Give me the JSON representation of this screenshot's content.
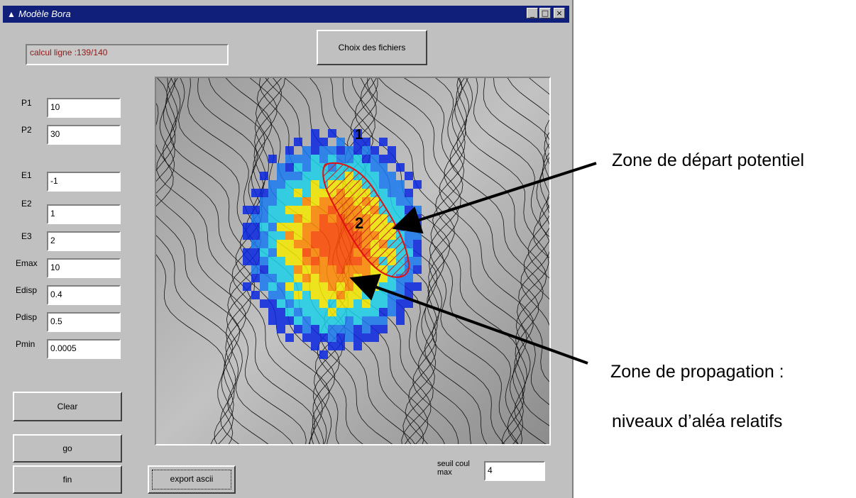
{
  "window": {
    "title": "Modèle Bora",
    "controls": [
      "_",
      "□",
      "×"
    ]
  },
  "status": {
    "text": "calcul ligne :139/140"
  },
  "choose_files_button": "Choix des fichiers",
  "params": [
    {
      "label": "P1",
      "value": "10"
    },
    {
      "label": "P2",
      "value": "30"
    },
    {
      "label": "E1",
      "value": "-1"
    },
    {
      "label": "E2",
      "value": "1"
    },
    {
      "label": "E3",
      "value": "2"
    },
    {
      "label": "Emax",
      "value": "10"
    },
    {
      "label": "Edisp",
      "value": "0.4"
    },
    {
      "label": "Pdisp",
      "value": "0.5"
    },
    {
      "label": "Pmin",
      "value": "0.0005"
    }
  ],
  "buttons": {
    "clear": "Clear",
    "go": "go",
    "fin": "fin",
    "export": "export ascii"
  },
  "threshold": {
    "label": "seuil coul max",
    "value": "4"
  },
  "map": {
    "marker1": "1",
    "marker2": "2"
  },
  "annotations": {
    "start_zone": "Zone de départ potentiel",
    "propagation_line1": "Zone de propagation :",
    "propagation_line2": "niveaux d’aléa relatifs"
  },
  "colors": {
    "title_bar": "#10207a",
    "window_bg": "#c0c0c0",
    "status_text": "#8b1a1a"
  }
}
